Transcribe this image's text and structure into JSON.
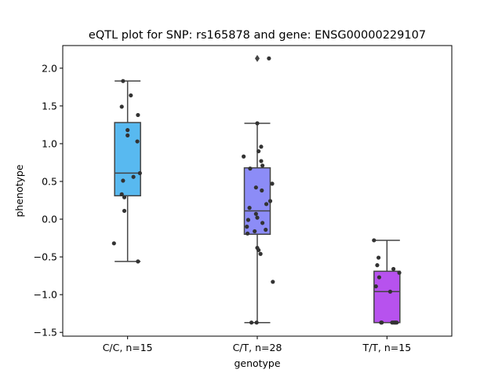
{
  "chart_data": {
    "type": "box",
    "title": "eQTL plot for SNP: rs165878 and gene: ENSG00000229107",
    "xlabel": "genotype",
    "ylabel": "phenotype",
    "ylim": [
      -1.55,
      2.3
    ],
    "yticks": [
      -1.5,
      -1.0,
      -0.5,
      0.0,
      0.5,
      1.0,
      1.5,
      2.0
    ],
    "ytick_labels": [
      "−1.5",
      "−1.0",
      "−0.5",
      "0.0",
      "0.5",
      "1.0",
      "1.5",
      "2.0"
    ],
    "categories": [
      "C/C, n=15",
      "C/T, n=28",
      "T/T, n=15"
    ],
    "colors": [
      "#58b9f0",
      "#8c8cf7",
      "#b752ee"
    ],
    "boxes": [
      {
        "q1": 0.31,
        "median": 0.61,
        "q3": 1.28,
        "whisker_low": -0.56,
        "whisker_high": 1.83,
        "outliers": []
      },
      {
        "q1": -0.2,
        "median": 0.11,
        "q3": 0.68,
        "whisker_low": -1.37,
        "whisker_high": 1.27,
        "outliers": [
          2.13
        ]
      },
      {
        "q1": -1.37,
        "median": -0.96,
        "q3": -0.69,
        "whisker_low": -1.37,
        "whisker_high": -0.28,
        "outliers": []
      }
    ],
    "points": [
      [
        {
          "x": -0.07,
          "y": 1.83
        },
        {
          "x": 0.05,
          "y": 1.64
        },
        {
          "x": -0.09,
          "y": 1.49
        },
        {
          "x": 0.16,
          "y": 1.38
        },
        {
          "x": 0.0,
          "y": 1.18
        },
        {
          "x": 0.0,
          "y": 1.11
        },
        {
          "x": 0.15,
          "y": 1.03
        },
        {
          "x": 0.19,
          "y": 0.61
        },
        {
          "x": 0.09,
          "y": 0.56
        },
        {
          "x": -0.07,
          "y": 0.51
        },
        {
          "x": -0.09,
          "y": 0.33
        },
        {
          "x": -0.05,
          "y": 0.29
        },
        {
          "x": -0.05,
          "y": 0.11
        },
        {
          "x": -0.21,
          "y": -0.32
        },
        {
          "x": 0.16,
          "y": -0.56
        }
      ],
      [
        {
          "x": 0.18,
          "y": 2.13
        },
        {
          "x": 0.0,
          "y": 1.27
        },
        {
          "x": 0.06,
          "y": 0.96
        },
        {
          "x": 0.02,
          "y": 0.9
        },
        {
          "x": -0.21,
          "y": 0.83
        },
        {
          "x": 0.06,
          "y": 0.77
        },
        {
          "x": 0.08,
          "y": 0.71
        },
        {
          "x": -0.11,
          "y": 0.67
        },
        {
          "x": 0.23,
          "y": 0.47
        },
        {
          "x": -0.02,
          "y": 0.42
        },
        {
          "x": 0.07,
          "y": 0.38
        },
        {
          "x": 0.2,
          "y": 0.24
        },
        {
          "x": 0.14,
          "y": 0.2
        },
        {
          "x": -0.12,
          "y": 0.15
        },
        {
          "x": -0.02,
          "y": 0.07
        },
        {
          "x": 0.0,
          "y": 0.02
        },
        {
          "x": -0.14,
          "y": -0.01
        },
        {
          "x": 0.08,
          "y": -0.05
        },
        {
          "x": -0.16,
          "y": -0.1
        },
        {
          "x": 0.13,
          "y": -0.14
        },
        {
          "x": -0.04,
          "y": -0.16
        },
        {
          "x": -0.15,
          "y": -0.19
        },
        {
          "x": 0.0,
          "y": -0.38
        },
        {
          "x": 0.02,
          "y": -0.41
        },
        {
          "x": 0.05,
          "y": -0.46
        },
        {
          "x": 0.24,
          "y": -0.83
        },
        {
          "x": -0.09,
          "y": -1.37
        },
        {
          "x": -0.01,
          "y": -1.37
        }
      ],
      [
        {
          "x": -0.2,
          "y": -0.28
        },
        {
          "x": -0.13,
          "y": -0.51
        },
        {
          "x": -0.15,
          "y": -0.61
        },
        {
          "x": 0.1,
          "y": -0.66
        },
        {
          "x": 0.19,
          "y": -0.71
        },
        {
          "x": -0.12,
          "y": -0.77
        },
        {
          "x": -0.17,
          "y": -0.89
        },
        {
          "x": 0.05,
          "y": -0.96
        },
        {
          "x": -0.09,
          "y": -1.37
        },
        {
          "x": -0.08,
          "y": -1.37
        },
        {
          "x": 0.08,
          "y": -1.37
        },
        {
          "x": 0.1,
          "y": -1.37
        },
        {
          "x": 0.12,
          "y": -1.37
        },
        {
          "x": 0.13,
          "y": -1.37
        },
        {
          "x": 0.15,
          "y": -1.37
        }
      ]
    ]
  }
}
